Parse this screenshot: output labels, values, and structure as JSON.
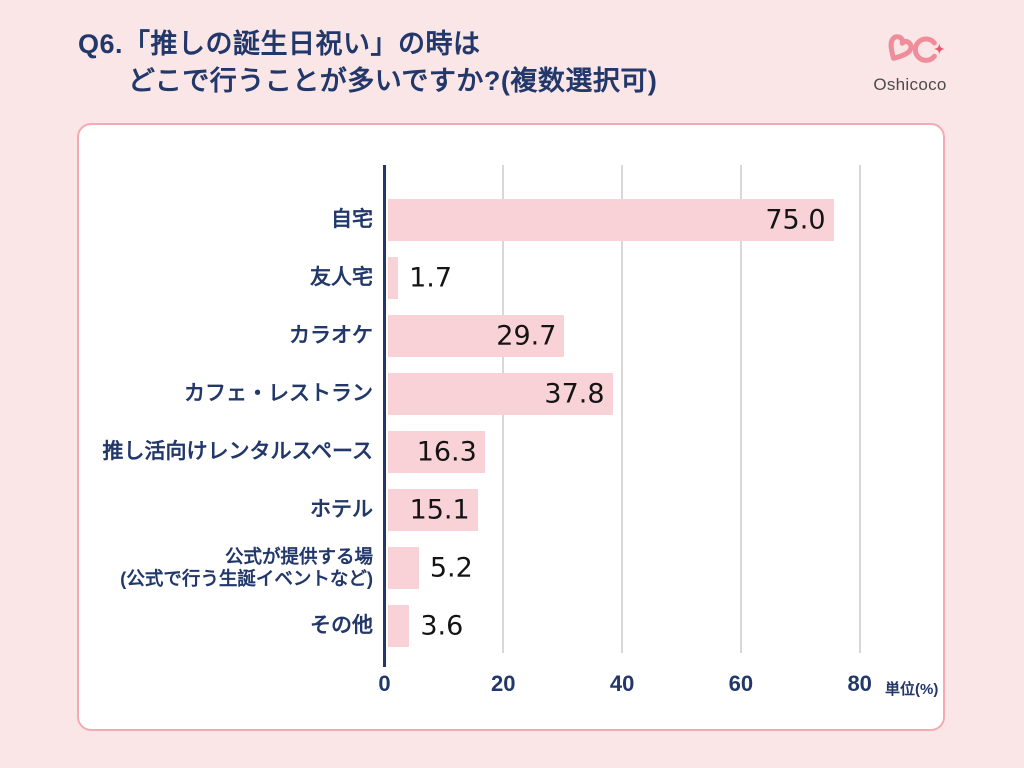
{
  "header": {
    "title_line1": "Q6.「推しの誕生日祝い」の時は",
    "title_line2": "どこで行うことが多いですか?(複数選択可)"
  },
  "logo": {
    "text": "Oshicoco",
    "icon": "double-heart-infinity-icon",
    "icon_color": "#ef8694",
    "sparkle_color": "#e75b6d"
  },
  "chart_data": {
    "type": "bar",
    "orientation": "horizontal",
    "categories": [
      {
        "label": "自宅",
        "sub": ""
      },
      {
        "label": "友人宅",
        "sub": ""
      },
      {
        "label": "カラオケ",
        "sub": ""
      },
      {
        "label": "カフェ・レストラン",
        "sub": ""
      },
      {
        "label": "推し活向けレンタルスペース",
        "sub": ""
      },
      {
        "label": "ホテル",
        "sub": ""
      },
      {
        "label": "公式が提供する場",
        "sub": "(公式で行う生誕イベントなど)"
      },
      {
        "label": "その他",
        "sub": ""
      }
    ],
    "values": [
      75.0,
      1.7,
      29.7,
      37.8,
      16.3,
      15.1,
      5.2,
      3.6
    ],
    "value_labels": [
      "75.0",
      "1.7",
      "29.7",
      "37.8",
      "16.3",
      "15.1",
      "5.2",
      "3.6"
    ],
    "x_tick_values": [
      0,
      20,
      40,
      60,
      80
    ],
    "x_tick_labels": [
      "0",
      "20",
      "40",
      "60",
      "80"
    ],
    "xlim": [
      0,
      94
    ],
    "unit_label": "単位(%)",
    "grid": "vertical",
    "legend": "none",
    "colors": {
      "bar": "#f8d2d6",
      "axis": "#22386a",
      "category_text": "#22386a",
      "value_text": "#141414",
      "gridline": "#d8d8d8",
      "card_border": "#f2abb3",
      "page_background": "#fbe6e7"
    }
  }
}
